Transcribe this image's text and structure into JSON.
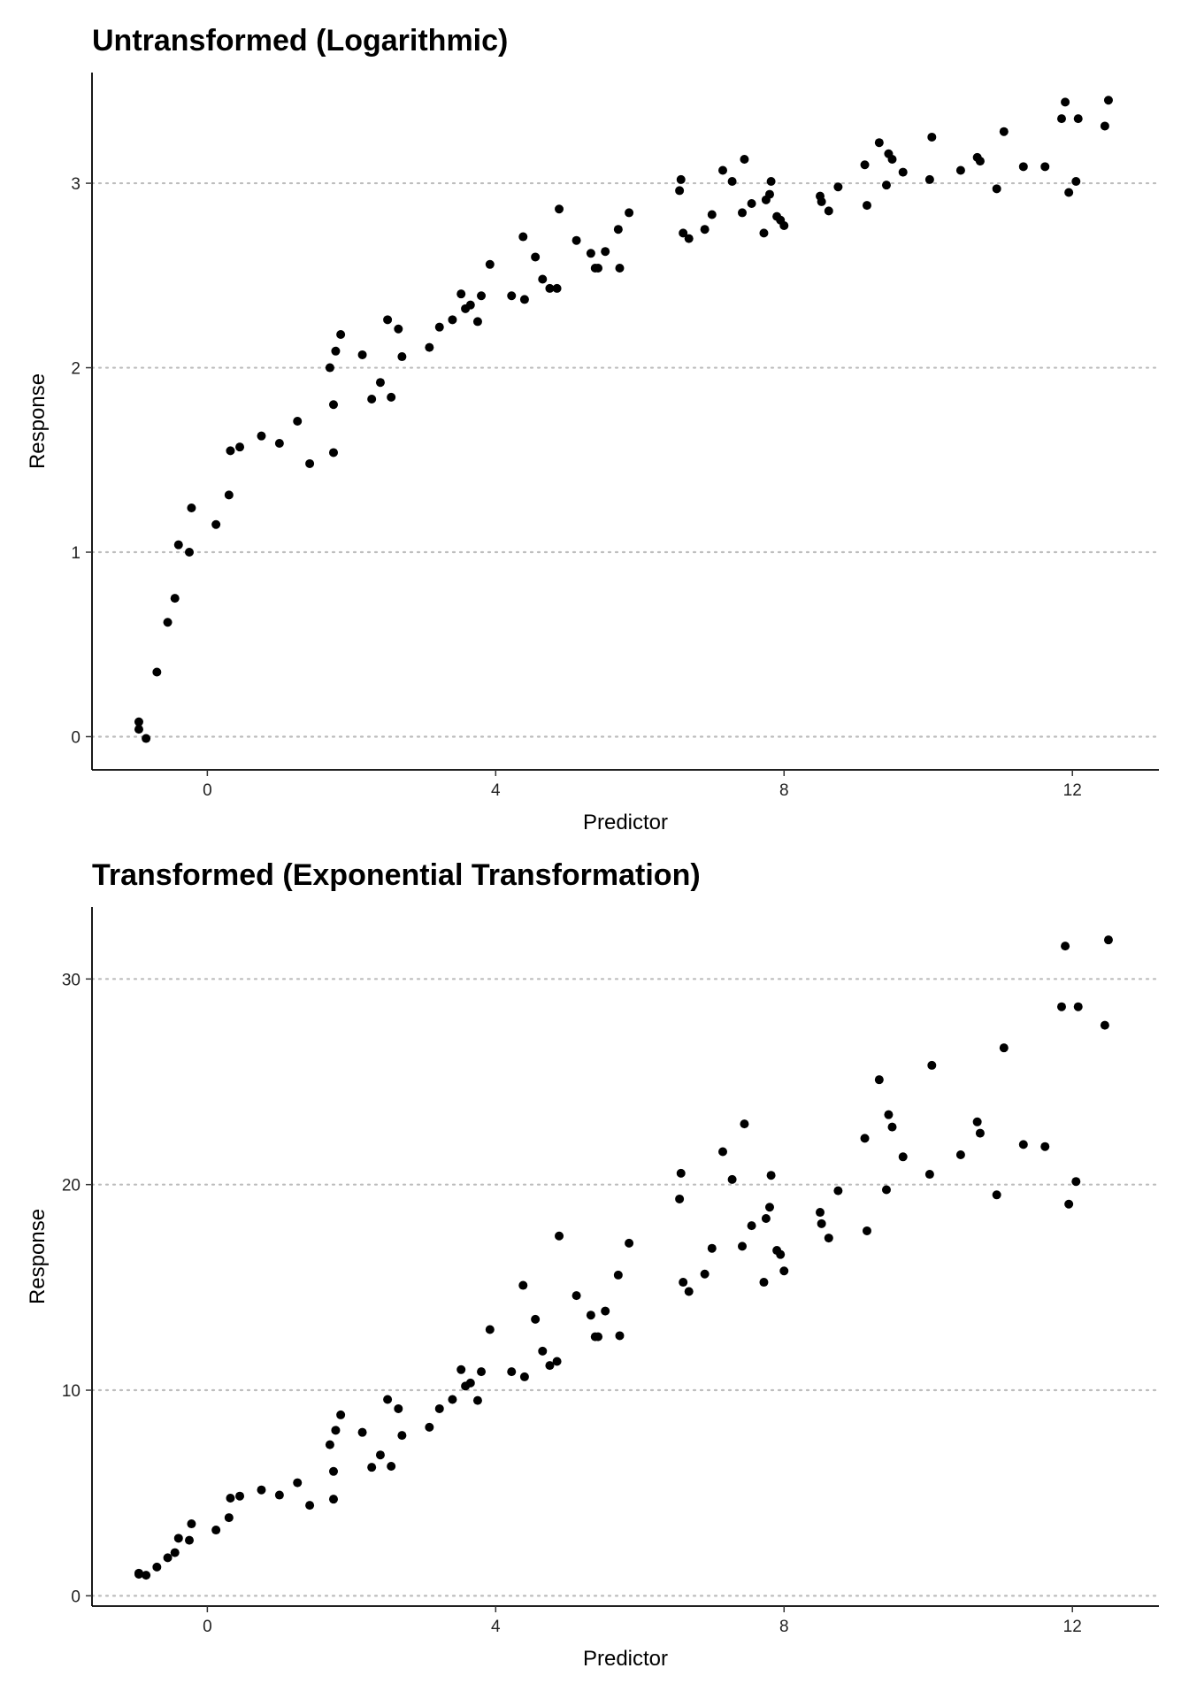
{
  "chart_data": [
    {
      "type": "scatter",
      "title": "Untransformed (Logarithmic)",
      "xlabel": "Predictor",
      "ylabel": "Response",
      "xlim": [
        -1.6,
        13.2
      ],
      "ylim": [
        -0.18,
        3.6
      ],
      "xticks": [
        0,
        4,
        8,
        12
      ],
      "yticks": [
        0,
        1,
        2,
        3
      ],
      "grid": "horizontal dotted",
      "point_color": "#000000",
      "grid_color": "#bdbdbd",
      "x": [
        -0.95,
        -0.95,
        -0.85,
        -0.7,
        -0.55,
        -0.45,
        -0.4,
        -0.25,
        -0.22,
        0.12,
        0.3,
        0.32,
        0.45,
        0.75,
        1.0,
        1.25,
        1.42,
        1.7,
        1.75,
        1.75,
        1.78,
        1.85,
        2.15,
        2.28,
        2.4,
        2.5,
        2.55,
        2.65,
        2.7,
        3.08,
        3.22,
        3.4,
        3.52,
        3.58,
        3.65,
        3.75,
        3.8,
        3.92,
        4.22,
        4.38,
        4.4,
        4.55,
        4.65,
        4.75,
        4.85,
        4.88,
        5.12,
        5.32,
        5.38,
        5.42,
        5.52,
        5.7,
        5.72,
        5.85,
        6.55,
        6.57,
        6.6,
        6.68,
        6.9,
        7.0,
        7.15,
        7.28,
        7.42,
        7.45,
        7.55,
        7.72,
        7.75,
        7.8,
        7.82,
        7.9,
        7.95,
        8.0,
        8.5,
        8.52,
        8.62,
        8.75,
        9.12,
        9.15,
        9.32,
        9.42,
        9.45,
        9.5,
        9.65,
        10.02,
        10.05,
        10.45,
        10.68,
        10.72,
        10.95,
        11.05,
        11.32,
        11.62,
        11.85,
        11.9,
        11.95,
        12.05,
        12.08,
        12.45,
        12.5
      ],
      "y": [
        0.08,
        0.04,
        -0.01,
        0.35,
        0.62,
        0.75,
        1.04,
        1.0,
        1.24,
        1.15,
        1.31,
        1.55,
        1.57,
        1.63,
        1.59,
        1.71,
        1.48,
        2.0,
        1.8,
        1.54,
        2.09,
        2.18,
        2.07,
        1.83,
        1.92,
        2.26,
        1.84,
        2.21,
        2.06,
        2.11,
        2.22,
        2.26,
        2.4,
        2.32,
        2.34,
        2.25,
        2.39,
        2.56,
        2.39,
        2.71,
        2.37,
        2.6,
        2.48,
        2.43,
        2.43,
        2.86,
        2.69,
        2.62,
        2.54,
        2.54,
        2.63,
        2.75,
        2.54,
        2.84,
        2.96,
        3.02,
        2.73,
        2.7,
        2.75,
        2.83,
        3.07,
        3.01,
        2.84,
        3.13,
        2.89,
        2.73,
        2.91,
        2.94,
        3.01,
        2.82,
        2.8,
        2.77,
        2.93,
        2.9,
        2.85,
        2.98,
        3.1,
        2.88,
        3.22,
        2.99,
        3.16,
        3.13,
        3.06,
        3.02,
        3.25,
        3.07,
        3.14,
        3.12,
        2.97,
        3.28,
        3.09,
        3.09,
        3.35,
        3.44,
        2.95,
        3.01,
        3.35,
        3.31,
        3.45
      ]
    },
    {
      "type": "scatter",
      "title": "Transformed (Exponential Transformation)",
      "xlabel": "Predictor",
      "ylabel": "Response",
      "xlim": [
        -1.6,
        13.2
      ],
      "ylim": [
        -0.5,
        33.5
      ],
      "xticks": [
        0,
        4,
        8,
        12
      ],
      "yticks": [
        0,
        10,
        20,
        30
      ],
      "grid": "horizontal dotted",
      "point_color": "#000000",
      "grid_color": "#bdbdbd",
      "x": [
        -0.95,
        -0.95,
        -0.85,
        -0.7,
        -0.55,
        -0.45,
        -0.4,
        -0.25,
        -0.22,
        0.12,
        0.3,
        0.32,
        0.45,
        0.75,
        1.0,
        1.25,
        1.42,
        1.7,
        1.75,
        1.75,
        1.78,
        1.85,
        2.15,
        2.28,
        2.4,
        2.5,
        2.55,
        2.65,
        2.7,
        3.08,
        3.22,
        3.4,
        3.52,
        3.58,
        3.65,
        3.75,
        3.8,
        3.92,
        4.22,
        4.38,
        4.4,
        4.55,
        4.65,
        4.75,
        4.85,
        4.88,
        5.12,
        5.32,
        5.38,
        5.42,
        5.52,
        5.7,
        5.72,
        5.85,
        6.55,
        6.57,
        6.6,
        6.68,
        6.9,
        7.0,
        7.15,
        7.28,
        7.42,
        7.45,
        7.55,
        7.72,
        7.75,
        7.8,
        7.82,
        7.9,
        7.95,
        8.0,
        8.5,
        8.52,
        8.62,
        8.75,
        9.12,
        9.15,
        9.32,
        9.42,
        9.45,
        9.5,
        9.65,
        10.02,
        10.05,
        10.45,
        10.68,
        10.72,
        10.95,
        11.05,
        11.32,
        11.62,
        11.85,
        11.9,
        11.95,
        12.05,
        12.08,
        12.45,
        12.5
      ],
      "y": [
        1.1,
        1.05,
        1.0,
        1.4,
        1.85,
        2.1,
        2.8,
        2.7,
        3.5,
        3.2,
        3.8,
        4.75,
        4.85,
        5.15,
        4.9,
        5.5,
        4.4,
        7.35,
        6.05,
        4.7,
        8.05,
        8.8,
        7.95,
        6.25,
        6.85,
        9.55,
        6.3,
        9.1,
        7.8,
        8.2,
        9.1,
        9.55,
        11.0,
        10.2,
        10.35,
        9.5,
        10.9,
        12.95,
        10.9,
        15.1,
        10.65,
        13.45,
        11.9,
        11.2,
        11.4,
        17.5,
        14.6,
        13.65,
        12.6,
        12.6,
        13.85,
        15.6,
        12.65,
        17.15,
        19.3,
        20.55,
        15.25,
        14.8,
        15.65,
        16.9,
        21.6,
        20.25,
        17.0,
        22.95,
        18.0,
        15.25,
        18.35,
        18.9,
        20.45,
        16.8,
        16.6,
        15.8,
        18.65,
        18.1,
        17.4,
        19.7,
        22.25,
        17.75,
        25.1,
        19.75,
        23.4,
        22.8,
        21.35,
        20.5,
        25.8,
        21.45,
        23.05,
        22.5,
        19.5,
        26.65,
        21.95,
        21.85,
        28.65,
        31.6,
        19.05,
        20.15,
        28.65,
        27.75,
        31.9
      ]
    }
  ]
}
